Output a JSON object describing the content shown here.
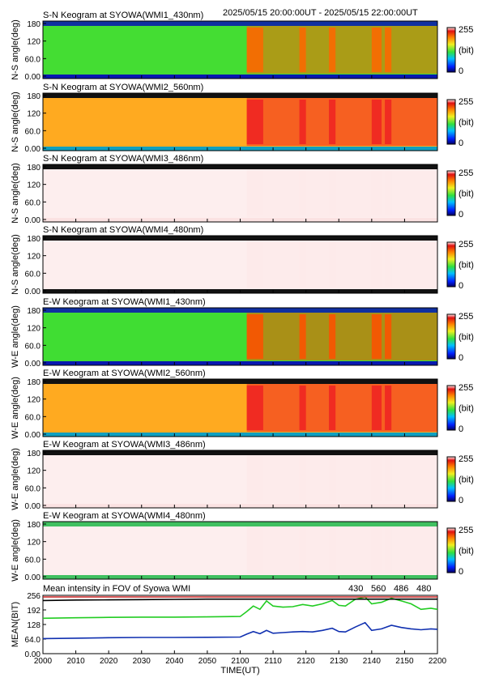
{
  "header": {
    "time_range": "2025/05/15 20:00:00UT - 2025/05/15 22:00:00UT"
  },
  "colorbar": {
    "max_label": "255",
    "unit_label": "(bit)",
    "min_label": "0"
  },
  "keograms": [
    {
      "title": "S-N Keogram at SYOWA(WMI1_430nm)",
      "ylabel": "N-S angle(deg)",
      "ticks": [
        "180",
        "120",
        "60.0",
        "0.00"
      ],
      "style": "green"
    },
    {
      "title": "S-N Keogram at SYOWA(WMI2_560nm)",
      "ylabel": "N-S angle(deg)",
      "ticks": [
        "180",
        "120",
        "60.0",
        "0.00"
      ],
      "style": "orange"
    },
    {
      "title": "S-N Keogram at SYOWA(WMI3_486nm)",
      "ylabel": "N-S angle(deg)",
      "ticks": [
        "180",
        "120",
        "60.0",
        "0.00"
      ],
      "style": "pale"
    },
    {
      "title": "S-N Keogram at SYOWA(WMI4_480nm)",
      "ylabel": "N-S angle(deg)",
      "ticks": [
        "180",
        "120",
        "60.0",
        "0.00"
      ],
      "style": "pale-dark"
    },
    {
      "title": "E-W Keogram at SYOWA(WMI1_430nm)",
      "ylabel": "W-E angle(deg)",
      "ticks": [
        "180",
        "120",
        "60.0",
        "0.00"
      ],
      "style": "green-ew"
    },
    {
      "title": "E-W Keogram at SYOWA(WMI2_560nm)",
      "ylabel": "W-E angle(deg)",
      "ticks": [
        "180",
        "120",
        "60.0",
        "0.00"
      ],
      "style": "orange"
    },
    {
      "title": "E-W Keogram at SYOWA(WMI3_486nm)",
      "ylabel": "W-E angle(deg)",
      "ticks": [
        "180",
        "120",
        "60.0",
        "0.00"
      ],
      "style": "pale"
    },
    {
      "title": "E-W Keogram at SYOWA(WMI4_480nm)",
      "ylabel": "W-E angle(deg)",
      "ticks": [
        "180",
        "120",
        "60.0",
        "0.00"
      ],
      "style": "pale-green"
    }
  ],
  "mean_panel": {
    "title": "Mean intensity in FOV of Syowa WMI",
    "ylabel": "MEAN(BIT)",
    "legend": [
      {
        "label": "430",
        "color": "#1030b0"
      },
      {
        "label": "560",
        "color": "#22cc22"
      },
      {
        "label": "486",
        "color": "#cc2222"
      },
      {
        "label": "480",
        "color": "#000000"
      }
    ]
  },
  "x_axis": {
    "label": "TIME(UT)",
    "ticks": [
      "2000",
      "2010",
      "2020",
      "2030",
      "2040",
      "2050",
      "2100",
      "2110",
      "2120",
      "2130",
      "2140",
      "2150",
      "2200"
    ]
  },
  "chart_data": {
    "type": "line",
    "title": "Mean intensity in FOV of Syowa WMI",
    "xlabel": "TIME(UT)",
    "ylabel": "MEAN(BIT)",
    "x_minutes_since_2000": [
      0,
      10,
      20,
      30,
      40,
      50,
      60,
      62,
      64,
      66,
      68,
      70,
      73,
      76,
      79,
      82,
      85,
      88,
      90,
      92,
      95,
      98,
      100,
      103,
      106,
      109,
      112,
      115,
      118,
      120
    ],
    "ylim": [
      0,
      256
    ],
    "yticks": [
      "0.00",
      "64.0",
      "128",
      "192",
      "256"
    ],
    "series": [
      {
        "name": "430",
        "values": [
          68,
          70,
          72,
          73,
          73,
          74,
          75,
          88,
          100,
          90,
          105,
          92,
          95,
          98,
          100,
          98,
          105,
          115,
          100,
          98,
          120,
          140,
          105,
          112,
          128,
          118,
          112,
          108,
          112,
          110
        ]
      },
      {
        "name": "560",
        "values": [
          160,
          162,
          164,
          165,
          165,
          166,
          168,
          190,
          215,
          200,
          238,
          215,
          210,
          212,
          222,
          215,
          225,
          240,
          218,
          215,
          245,
          256,
          225,
          232,
          250,
          238,
          225,
          200,
          205,
          200
        ]
      },
      {
        "name": "486",
        "values": [
          256,
          256,
          256,
          256,
          256,
          256,
          256,
          256,
          256,
          256,
          256,
          256,
          256,
          256,
          256,
          256,
          256,
          256,
          256,
          256,
          256,
          256,
          256,
          256,
          256,
          256,
          256,
          256,
          256,
          256
        ]
      },
      {
        "name": "480",
        "values": [
          240,
          242,
          243,
          244,
          245,
          246,
          246,
          246,
          246,
          246,
          246,
          246,
          246,
          246,
          246,
          246,
          246,
          246,
          246,
          246,
          246,
          246,
          246,
          246,
          246,
          246,
          246,
          246,
          246,
          246
        ]
      }
    ]
  }
}
